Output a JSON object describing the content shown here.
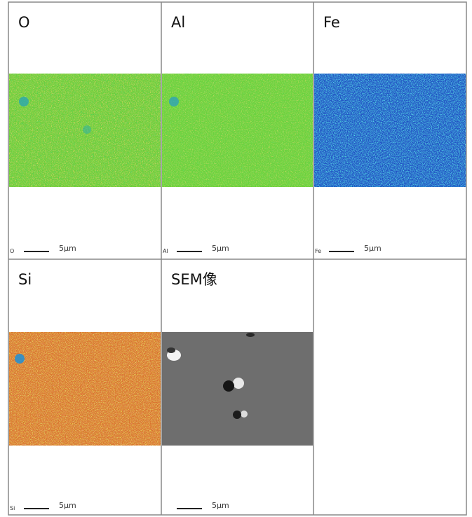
{
  "panels": [
    {
      "title": "O",
      "corner_label": "O",
      "scale_label": "5μm"
    },
    {
      "title": "Al",
      "corner_label": "Al",
      "scale_label": "5μm"
    },
    {
      "title": "Fe",
      "corner_label": "Fe",
      "scale_label": "5μm"
    },
    {
      "title": "Si",
      "corner_label": "Si",
      "scale_label": "5μm"
    },
    {
      "title": "SEM像",
      "scale_label": "5μm"
    }
  ]
}
